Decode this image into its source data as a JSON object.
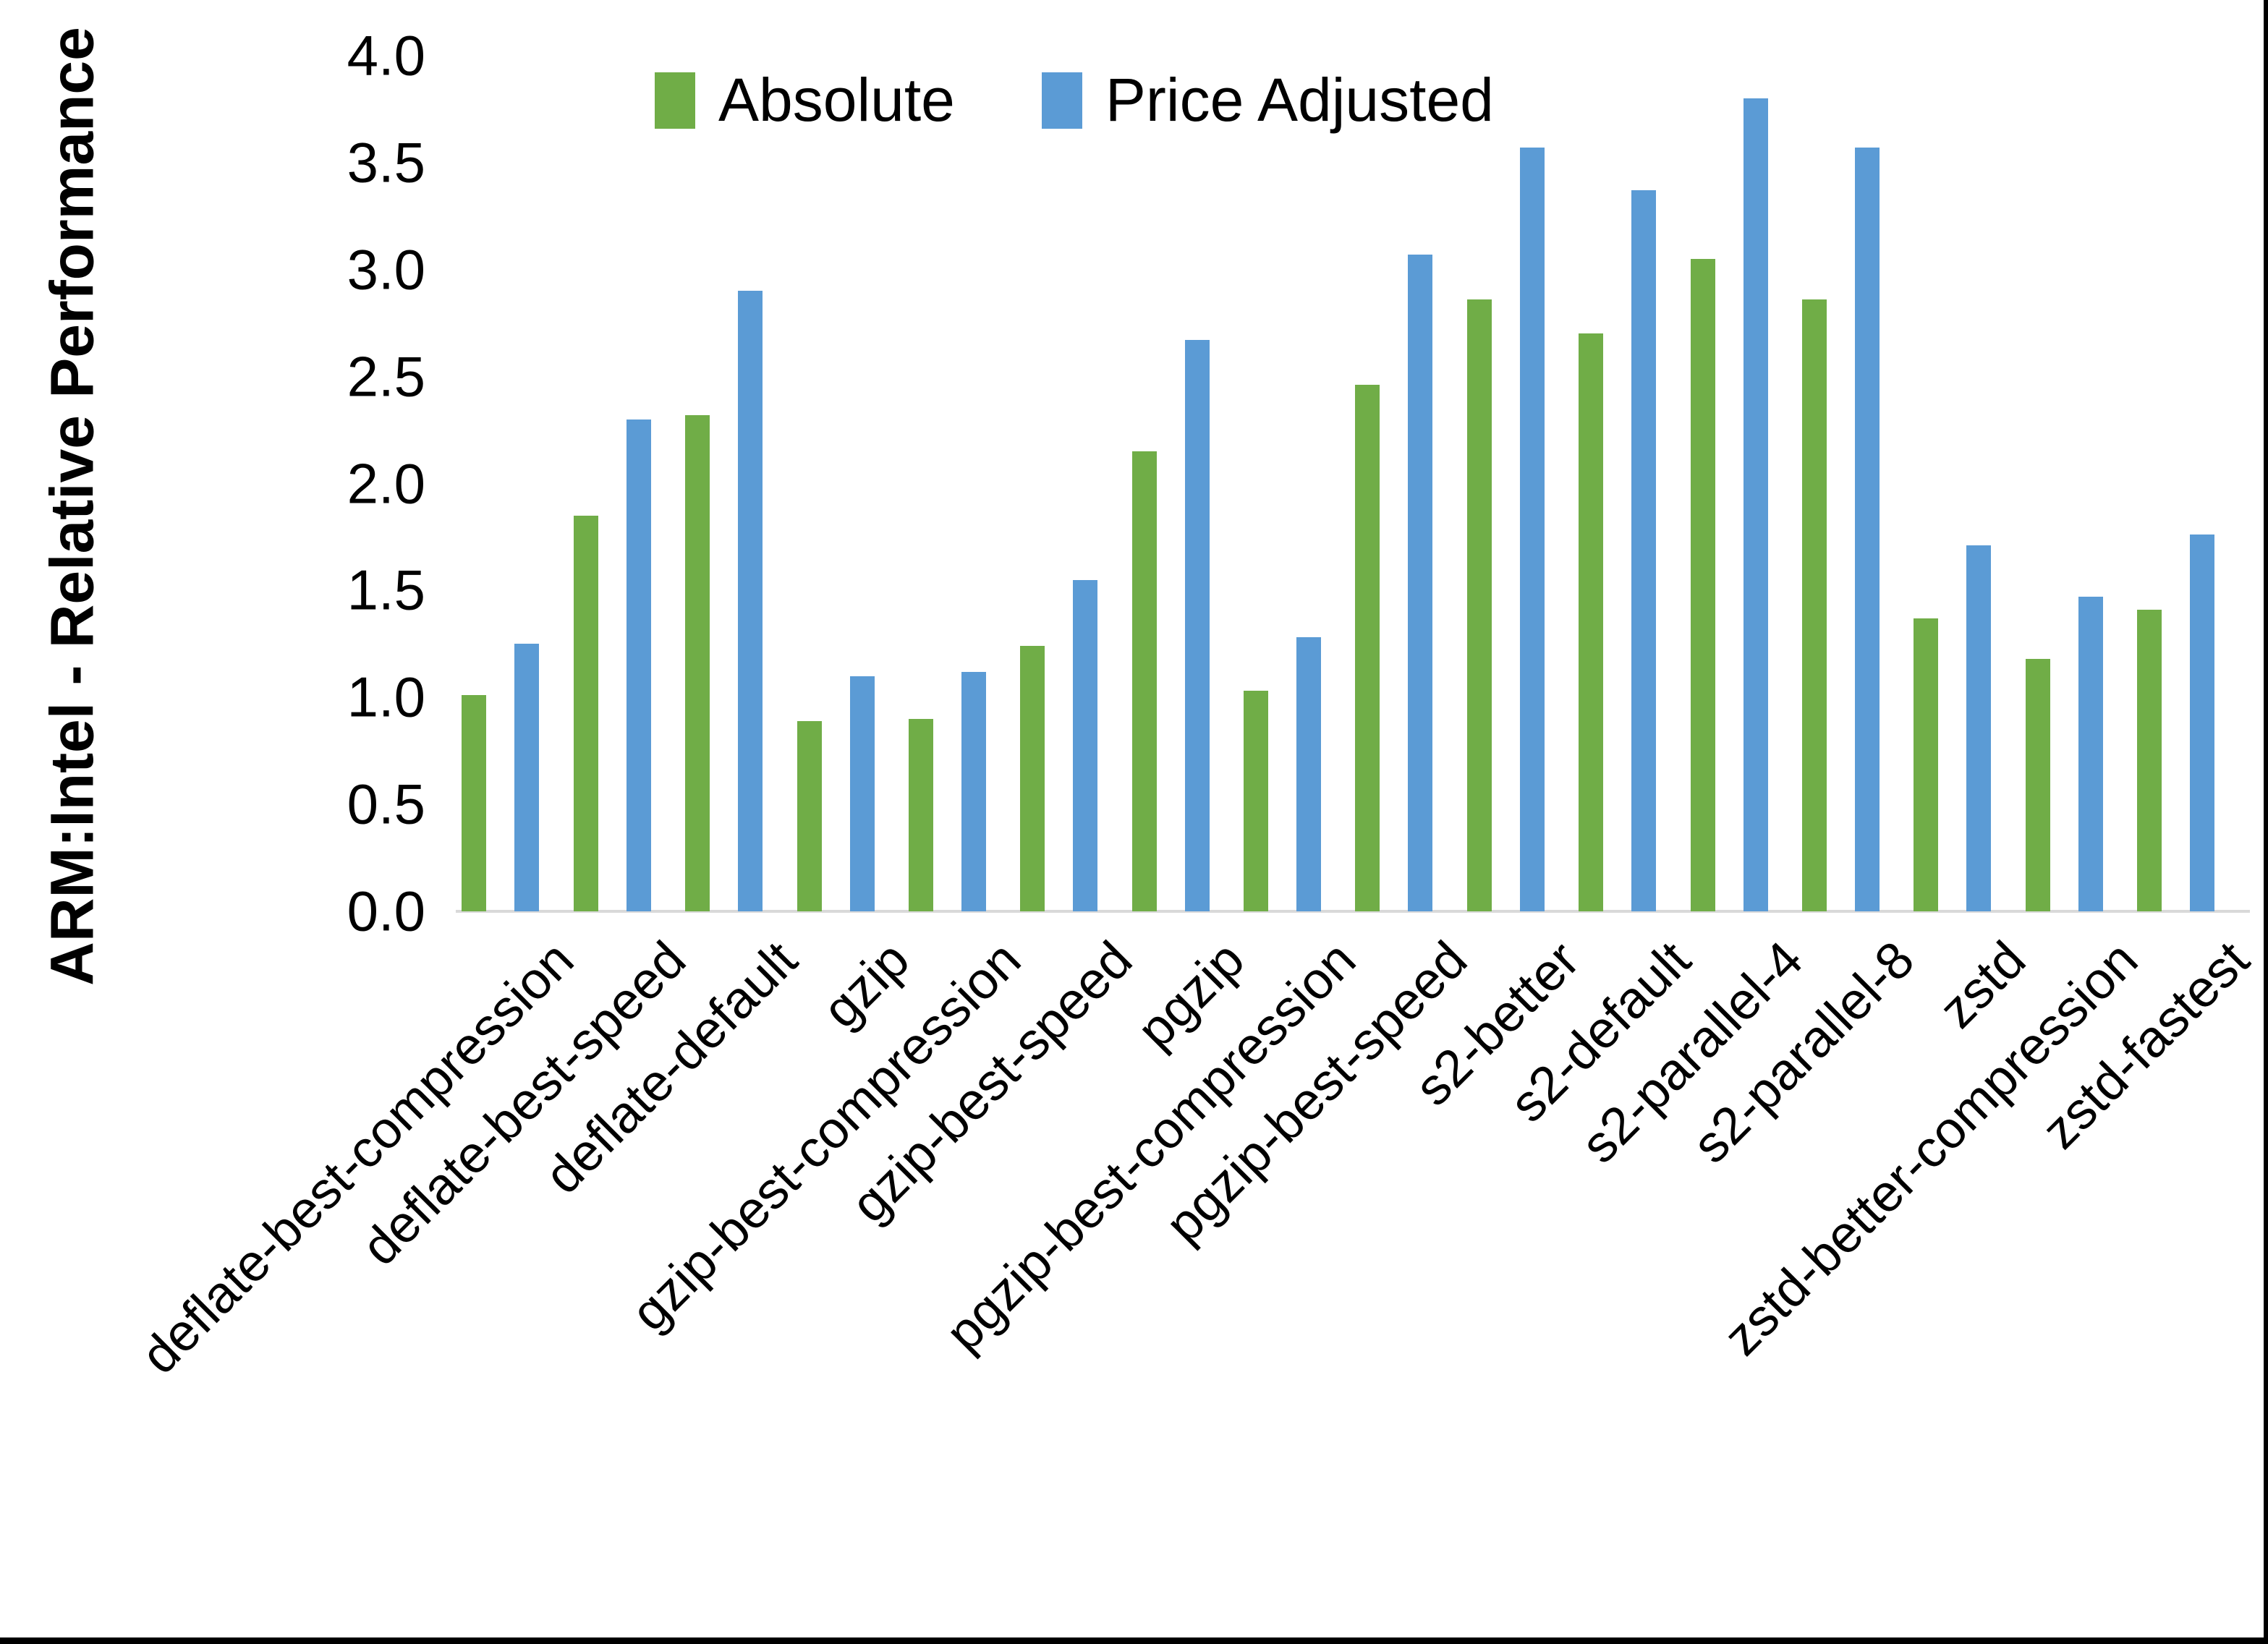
{
  "chart_data": {
    "type": "bar",
    "title": "",
    "xlabel": "",
    "ylabel": "ARM:Intel - Relative Performance",
    "ylim": [
      0.0,
      4.0
    ],
    "ytick_labels": [
      "0.0",
      "0.5",
      "1.0",
      "1.5",
      "2.0",
      "2.5",
      "3.0",
      "3.5",
      "4.0"
    ],
    "ytick_values": [
      0.0,
      0.5,
      1.0,
      1.5,
      2.0,
      2.5,
      3.0,
      3.5,
      4.0
    ],
    "grid": false,
    "legend_position": "top-left-of-plot",
    "categories": [
      "deflate-best-compression",
      "deflate-best-speed",
      "deflate-default",
      "gzip",
      "gzip-best-compression",
      "gzip-best-speed",
      "pgzip",
      "pgzip-best-compression",
      "pgzip-best-speed",
      "s2-better",
      "s2-default",
      "s2-parallel-4",
      "s2-parallel-8",
      "zstd",
      "zstd-better-compression",
      "zstd-fastest"
    ],
    "series": [
      {
        "name": "Absolute",
        "color": "#70AD47",
        "values": [
          1.01,
          1.85,
          2.32,
          0.89,
          0.9,
          1.24,
          2.15,
          1.03,
          2.46,
          2.86,
          2.7,
          3.05,
          2.86,
          1.37,
          1.18,
          1.41
        ]
      },
      {
        "name": "Price Adjusted",
        "color": "#5B9BD5",
        "values": [
          1.25,
          2.3,
          2.9,
          1.1,
          1.12,
          1.55,
          2.67,
          1.28,
          3.07,
          3.57,
          3.37,
          3.8,
          3.57,
          1.71,
          1.47,
          1.76
        ]
      }
    ],
    "axis_line_color": "#D9D9D9",
    "text_color": "#000000"
  }
}
